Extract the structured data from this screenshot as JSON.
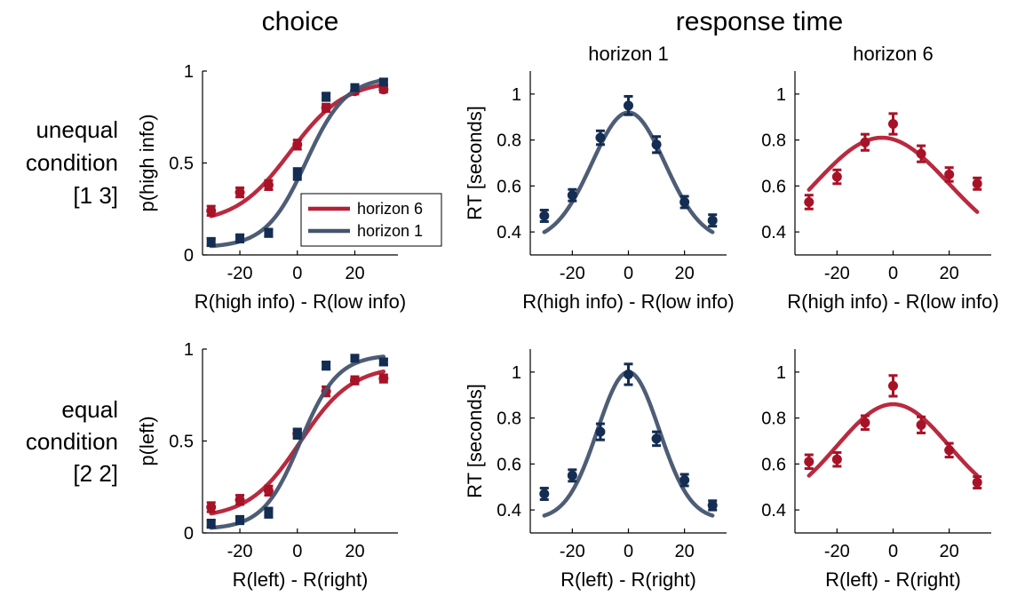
{
  "column_titles": {
    "choice": "choice",
    "response_time": "response time"
  },
  "row_labels": [
    [
      "unequal",
      "condition",
      "[1 3]"
    ],
    [
      "equal",
      "condition",
      "[2 2]"
    ]
  ],
  "colors": {
    "horizon6": "#b51f35",
    "horizon1": "#44546f",
    "horizon6_marker": "#a81227",
    "horizon1_marker": "#142d52"
  },
  "chart_data": [
    {
      "id": "choice-unequal",
      "type": "scatter",
      "xlabel": "R(high info) - R(low info)",
      "ylabel": "p(high info)",
      "xlim": [
        -33,
        35
      ],
      "ylim": [
        0,
        1
      ],
      "xticks": [
        -20,
        0,
        20
      ],
      "xtick_labels": [
        "-20",
        "0",
        "20"
      ],
      "yticks": [
        0,
        0.5,
        1
      ],
      "ytick_labels": [
        "0",
        "0.5",
        "1"
      ],
      "legend": {
        "placement": "bottom-right",
        "entries": [
          "horizon 6",
          "horizon 1"
        ]
      },
      "series": [
        {
          "name": "horizon 6",
          "color": "#b51f35",
          "marker": "circle",
          "x": [
            -30,
            -20,
            -10,
            0,
            10,
            20,
            30
          ],
          "y": [
            0.24,
            0.34,
            0.38,
            0.6,
            0.8,
            0.89,
            0.9
          ],
          "err": [
            0.025,
            0.025,
            0.025,
            0.025,
            0.02,
            0.015,
            0.015
          ],
          "fit": {
            "kind": "logistic",
            "lo": 0.17,
            "hi": 0.95,
            "mu": -2.5,
            "s": 9.5
          }
        },
        {
          "name": "horizon 1",
          "color": "#44546f",
          "marker": "square",
          "x": [
            -30,
            -20,
            -10,
            0,
            10,
            20,
            30
          ],
          "y": [
            0.07,
            0.09,
            0.12,
            0.44,
            0.86,
            0.91,
            0.94
          ],
          "err": [
            0.02,
            0.02,
            0.02,
            0.03,
            0.02,
            0.015,
            0.015
          ],
          "fit": {
            "kind": "logistic",
            "lo": 0.04,
            "hi": 0.97,
            "mu": 3,
            "s": 7
          }
        }
      ]
    },
    {
      "id": "rt-unequal-h1",
      "type": "scatter",
      "title": "horizon 1",
      "xlabel": "R(high info) - R(low info)",
      "ylabel": "RT [seconds]",
      "xlim": [
        -35,
        35
      ],
      "ylim": [
        0.3,
        1.1
      ],
      "xticks": [
        -20,
        0,
        20
      ],
      "xtick_labels": [
        "-20",
        "0",
        "20"
      ],
      "yticks": [
        0.4,
        0.6,
        0.8,
        1
      ],
      "ytick_labels": [
        "0.4",
        "0.6",
        "0.8",
        "1"
      ],
      "series": [
        {
          "color": "#44546f",
          "marker": "circle",
          "x": [
            -30,
            -20,
            -10,
            0,
            10,
            20,
            30
          ],
          "y": [
            0.47,
            0.56,
            0.81,
            0.95,
            0.78,
            0.53,
            0.45
          ],
          "err": [
            0.025,
            0.025,
            0.03,
            0.04,
            0.035,
            0.025,
            0.025
          ],
          "fit": {
            "kind": "gauss",
            "base": 0.36,
            "amp": 0.56,
            "mu": 0,
            "sigma": 13
          }
        }
      ]
    },
    {
      "id": "rt-unequal-h6",
      "type": "scatter",
      "title": "horizon 6",
      "xlabel": "R(high info) - R(low info)",
      "xlim": [
        -35,
        35
      ],
      "ylim": [
        0.3,
        1.1
      ],
      "xticks": [
        -20,
        0,
        20
      ],
      "xtick_labels": [
        "-20",
        "0",
        "20"
      ],
      "yticks": [
        0.4,
        0.6,
        0.8,
        1
      ],
      "ytick_labels": [
        "0.4",
        "0.6",
        "0.8",
        "1"
      ],
      "series": [
        {
          "color": "#b51f35",
          "marker": "circle",
          "x": [
            -30,
            -20,
            -10,
            0,
            10,
            20,
            30
          ],
          "y": [
            0.53,
            0.64,
            0.79,
            0.87,
            0.74,
            0.65,
            0.61
          ],
          "err": [
            0.03,
            0.03,
            0.035,
            0.045,
            0.035,
            0.03,
            0.025
          ],
          "fit": {
            "kind": "gauss",
            "base": 0.3,
            "amp": 0.51,
            "mu": -4,
            "sigma": 24
          }
        }
      ]
    },
    {
      "id": "choice-equal",
      "type": "scatter",
      "xlabel": "R(left) - R(right)",
      "ylabel": "p(left)",
      "xlim": [
        -33,
        35
      ],
      "ylim": [
        0,
        1
      ],
      "xticks": [
        -20,
        0,
        20
      ],
      "xtick_labels": [
        "-20",
        "0",
        "20"
      ],
      "yticks": [
        0,
        0.5,
        1
      ],
      "ytick_labels": [
        "0",
        "0.5",
        "1"
      ],
      "series": [
        {
          "name": "horizon 6",
          "color": "#b51f35",
          "marker": "circle",
          "x": [
            -30,
            -20,
            -10,
            0,
            10,
            20,
            30
          ],
          "y": [
            0.14,
            0.18,
            0.23,
            0.54,
            0.77,
            0.83,
            0.84
          ],
          "err": [
            0.025,
            0.025,
            0.025,
            0.025,
            0.025,
            0.02,
            0.02
          ],
          "fit": {
            "kind": "logistic",
            "lo": 0.08,
            "hi": 0.91,
            "mu": 1,
            "s": 9
          }
        },
        {
          "name": "horizon 1",
          "color": "#44546f",
          "marker": "square",
          "x": [
            -30,
            -20,
            -10,
            0,
            10,
            20,
            30
          ],
          "y": [
            0.05,
            0.07,
            0.11,
            0.54,
            0.91,
            0.95,
            0.93
          ],
          "err": [
            0.02,
            0.02,
            0.025,
            0.025,
            0.02,
            0.015,
            0.015
          ],
          "fit": {
            "kind": "logistic",
            "lo": 0.02,
            "hi": 0.97,
            "mu": 1,
            "s": 6.5
          }
        }
      ]
    },
    {
      "id": "rt-equal-h1",
      "type": "scatter",
      "xlabel": "R(left) - R(right)",
      "ylabel": "RT [seconds]",
      "xlim": [
        -35,
        35
      ],
      "ylim": [
        0.3,
        1.1
      ],
      "xticks": [
        -20,
        0,
        20
      ],
      "xtick_labels": [
        "-20",
        "0",
        "20"
      ],
      "yticks": [
        0.4,
        0.6,
        0.8,
        1
      ],
      "ytick_labels": [
        "0.4",
        "0.6",
        "0.8",
        "1"
      ],
      "series": [
        {
          "color": "#44546f",
          "marker": "circle",
          "x": [
            -30,
            -20,
            -10,
            0,
            10,
            20,
            30
          ],
          "y": [
            0.47,
            0.55,
            0.74,
            0.99,
            0.71,
            0.53,
            0.42
          ],
          "err": [
            0.025,
            0.025,
            0.035,
            0.045,
            0.03,
            0.025,
            0.02
          ],
          "fit": {
            "kind": "gauss",
            "base": 0.36,
            "amp": 0.64,
            "mu": 0,
            "sigma": 11
          }
        }
      ]
    },
    {
      "id": "rt-equal-h6",
      "type": "scatter",
      "xlabel": "R(left) - R(right)",
      "xlim": [
        -35,
        35
      ],
      "ylim": [
        0.3,
        1.1
      ],
      "xticks": [
        -20,
        0,
        20
      ],
      "xtick_labels": [
        "-20",
        "0",
        "20"
      ],
      "yticks": [
        0.4,
        0.6,
        0.8,
        1
      ],
      "ytick_labels": [
        "0.4",
        "0.6",
        "0.8",
        "1"
      ],
      "series": [
        {
          "color": "#b51f35",
          "marker": "circle",
          "x": [
            -30,
            -20,
            -10,
            0,
            10,
            20,
            30
          ],
          "y": [
            0.61,
            0.62,
            0.78,
            0.94,
            0.77,
            0.66,
            0.52
          ],
          "err": [
            0.03,
            0.03,
            0.03,
            0.045,
            0.035,
            0.03,
            0.025
          ],
          "fit": {
            "kind": "gauss",
            "base": 0.4,
            "amp": 0.46,
            "mu": 0,
            "sigma": 20
          }
        }
      ]
    }
  ]
}
